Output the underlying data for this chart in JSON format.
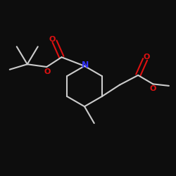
{
  "bg_color": "#0d0d0d",
  "bond_color": "#cccccc",
  "N_color": "#3333ff",
  "O_color": "#dd1111",
  "bond_width": 1.5,
  "figsize": [
    2.5,
    2.5
  ],
  "dpi": 100,
  "xlim": [
    0,
    10
  ],
  "ylim": [
    0,
    10
  ]
}
